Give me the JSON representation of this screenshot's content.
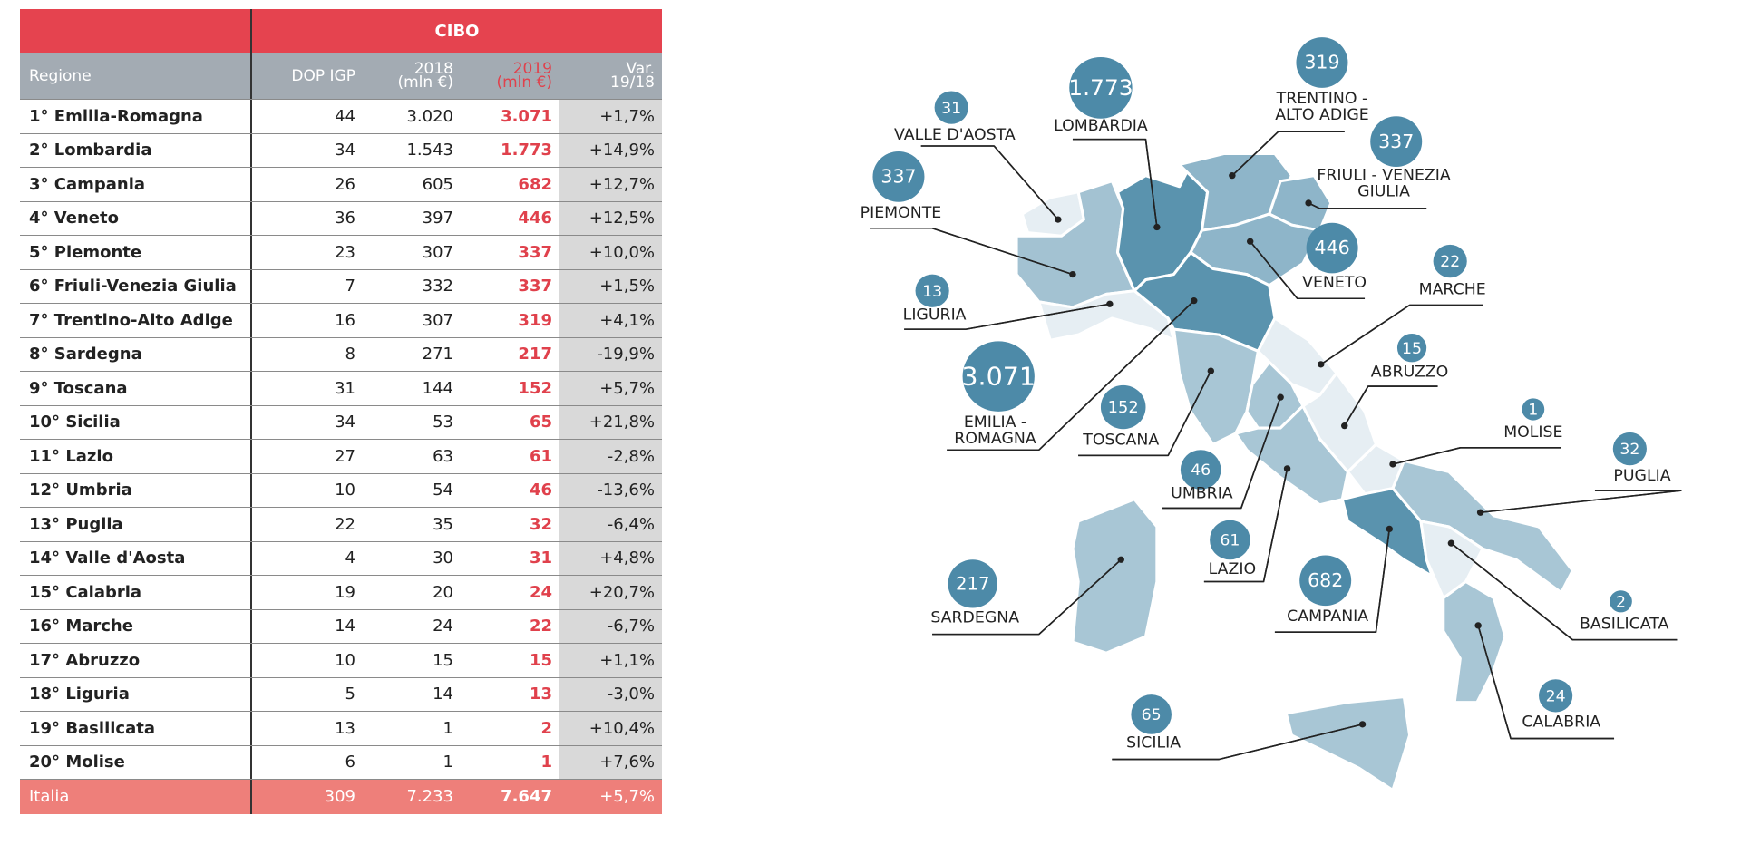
{
  "table": {
    "title": "CIBO",
    "columns": [
      [
        "Regione"
      ],
      [
        "DOP IGP"
      ],
      [
        "2018",
        "(mln €)"
      ],
      [
        "2019",
        "(mln €)"
      ],
      [
        "Var.",
        "19/18"
      ]
    ],
    "rows": [
      [
        "1° Emilia-Romagna",
        "44",
        "3.020",
        "3.071",
        "+1,7%"
      ],
      [
        "2° Lombardia",
        "34",
        "1.543",
        "1.773",
        "+14,9%"
      ],
      [
        "3° Campania",
        "26",
        "605",
        "682",
        "+12,7%"
      ],
      [
        "4° Veneto",
        "36",
        "397",
        "446",
        "+12,5%"
      ],
      [
        "5° Piemonte",
        "23",
        "307",
        "337",
        "+10,0%"
      ],
      [
        "6° Friuli-Venezia Giulia",
        "7",
        "332",
        "337",
        "+1,5%"
      ],
      [
        "7° Trentino-Alto Adige",
        "16",
        "307",
        "319",
        "+4,1%"
      ],
      [
        "8° Sardegna",
        "8",
        "271",
        "217",
        "-19,9%"
      ],
      [
        "9° Toscana",
        "31",
        "144",
        "152",
        "+5,7%"
      ],
      [
        "10° Sicilia",
        "34",
        "53",
        "65",
        "+21,8%"
      ],
      [
        "11° Lazio",
        "27",
        "63",
        "61",
        "-2,8%"
      ],
      [
        "12° Umbria",
        "10",
        "54",
        "46",
        "-13,6%"
      ],
      [
        "13° Puglia",
        "22",
        "35",
        "32",
        "-6,4%"
      ],
      [
        "14° Valle d'Aosta",
        "4",
        "30",
        "31",
        "+4,8%"
      ],
      [
        "15° Calabria",
        "19",
        "20",
        "24",
        "+20,7%"
      ],
      [
        "16° Marche",
        "14",
        "24",
        "22",
        "-6,7%"
      ],
      [
        "17° Abruzzo",
        "10",
        "15",
        "15",
        "+1,1%"
      ],
      [
        "18° Liguria",
        "5",
        "14",
        "13",
        "-3,0%"
      ],
      [
        "19° Basilicata",
        "13",
        "1",
        "2",
        "+10,4%"
      ],
      [
        "20° Molise",
        "6",
        "1",
        "1",
        "+7,6%"
      ]
    ],
    "total": [
      "Italia",
      "309",
      "7.233",
      "7.647",
      "+5,7%"
    ]
  },
  "map": {
    "labels": [
      {
        "value": "31",
        "name": [
          "VALLE D'AOSTA"
        ]
      },
      {
        "value": "1.773",
        "name": [
          "LOMBARDIA"
        ]
      },
      {
        "value": "319",
        "name": [
          "TRENTINO -",
          "ALTO ADIGE"
        ]
      },
      {
        "value": "337",
        "name": [
          "FRIULI - VENEZIA",
          "GIULIA"
        ]
      },
      {
        "value": "337",
        "name": [
          "PIEMONTE"
        ]
      },
      {
        "value": "446",
        "name": [
          "VENETO"
        ]
      },
      {
        "value": "22",
        "name": [
          "MARCHE"
        ]
      },
      {
        "value": "13",
        "name": [
          "LIGURIA"
        ]
      },
      {
        "value": "15",
        "name": [
          "ABRUZZO"
        ]
      },
      {
        "value": "3.071",
        "name": [
          "EMILIA -",
          "ROMAGNA"
        ]
      },
      {
        "value": "152",
        "name": [
          "TOSCANA"
        ]
      },
      {
        "value": "1",
        "name": [
          "MOLISE"
        ]
      },
      {
        "value": "46",
        "name": [
          "UMBRIA"
        ]
      },
      {
        "value": "32",
        "name": [
          "PUGLIA"
        ]
      },
      {
        "value": "61",
        "name": [
          "LAZIO"
        ]
      },
      {
        "value": "682",
        "name": [
          "CAMPANIA"
        ]
      },
      {
        "value": "217",
        "name": [
          "SARDEGNA"
        ]
      },
      {
        "value": "2",
        "name": [
          "BASILICATA"
        ]
      },
      {
        "value": "24",
        "name": [
          "CALABRIA"
        ]
      },
      {
        "value": "65",
        "name": [
          "SICILIA"
        ]
      }
    ]
  }
}
